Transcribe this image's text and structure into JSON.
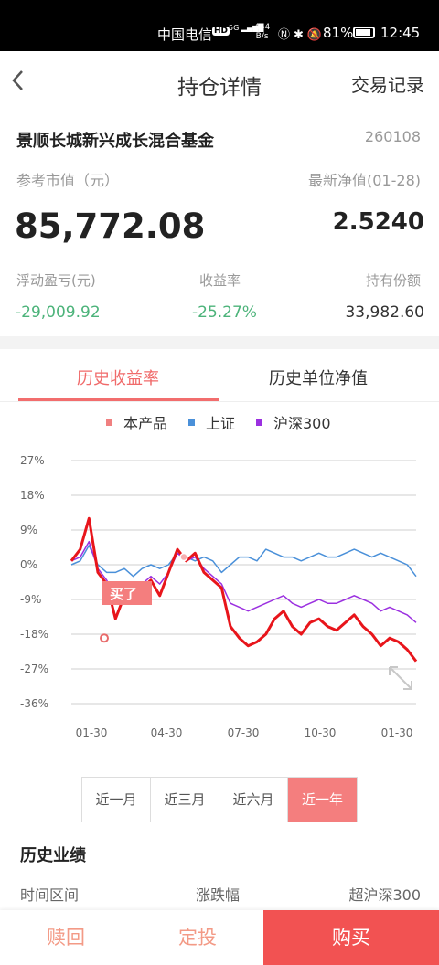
{
  "status_bar": {
    "carrier": "中国电信",
    "hd": "HD",
    "signal": "5G",
    "speed_top": "464",
    "speed_bottom": "B/s",
    "battery": "81%",
    "time": "12:45"
  },
  "nav": {
    "title": "持仓详情",
    "right_link": "交易记录"
  },
  "fund": {
    "name": "景顺长城新兴成长混合基金",
    "code": "260108",
    "market_value_label": "参考市值（元）",
    "market_value": "85,772.08",
    "nav_label": "最新净值(01-28)",
    "nav_value": "2.5240",
    "pnl_label": "浮动盈亏(元)",
    "pnl_value": "-29,009.92",
    "return_label": "收益率",
    "return_value": "-25.27%",
    "shares_label": "持有份额",
    "shares_value": "33,982.60"
  },
  "tabs": {
    "history_return": "历史收益率",
    "history_nav": "历史单位净值"
  },
  "legend": {
    "product": "本产品",
    "shanghai": "上证",
    "hs300": "沪深300"
  },
  "colors": {
    "product": "#e8151b",
    "shanghai": "#4a90d9",
    "hs300": "#9b30e0",
    "accent": "#f25252"
  },
  "chart_data": {
    "type": "line",
    "y_ticks": [
      "27%",
      "18%",
      "9%",
      "0%",
      "-9%",
      "-18%",
      "-27%",
      "-36%"
    ],
    "x_ticks": [
      "01-30",
      "04-30",
      "07-30",
      "10-30",
      "01-30"
    ],
    "ylim": [
      -36,
      27
    ],
    "buy_marker_label": "买了",
    "series": [
      {
        "name": "本产品",
        "values": [
          1,
          4,
          12,
          -2,
          -5,
          -14,
          -8,
          -9,
          -6,
          -4,
          -8,
          -2,
          4,
          1,
          3,
          -2,
          -4,
          -6,
          -16,
          -19,
          -21,
          -20,
          -18,
          -14,
          -12,
          -16,
          -18,
          -15,
          -14,
          -16,
          -17,
          -15,
          -13,
          -16,
          -18,
          -21,
          -19,
          -20,
          -22,
          -25
        ]
      },
      {
        "name": "上证",
        "values": [
          0,
          1,
          5,
          0,
          -2,
          -2,
          -1,
          -3,
          -1,
          0,
          -1,
          0,
          3,
          2,
          1,
          2,
          1,
          -2,
          0,
          2,
          2,
          1,
          4,
          3,
          2,
          2,
          1,
          2,
          3,
          2,
          2,
          3,
          4,
          3,
          2,
          3,
          2,
          1,
          0,
          -3
        ]
      },
      {
        "name": "沪深300",
        "values": [
          1,
          2,
          6,
          -1,
          -4,
          -9,
          -6,
          -6,
          -5,
          -3,
          -5,
          -2,
          3,
          1,
          2,
          -1,
          -3,
          -5,
          -10,
          -11,
          -12,
          -11,
          -10,
          -9,
          -8,
          -10,
          -11,
          -10,
          -9,
          -10,
          -10,
          -9,
          -8,
          -9,
          -10,
          -12,
          -11,
          -12,
          -13,
          -15
        ]
      }
    ]
  },
  "periods": [
    "近一月",
    "近三月",
    "近六月",
    "近一年"
  ],
  "performance": {
    "title": "历史业绩",
    "col_period": "时间区间",
    "col_change": "涨跌幅",
    "col_excess": "超沪深300"
  },
  "bottom_bar": {
    "redeem": "赎回",
    "auto_invest": "定投",
    "buy": "购买"
  }
}
